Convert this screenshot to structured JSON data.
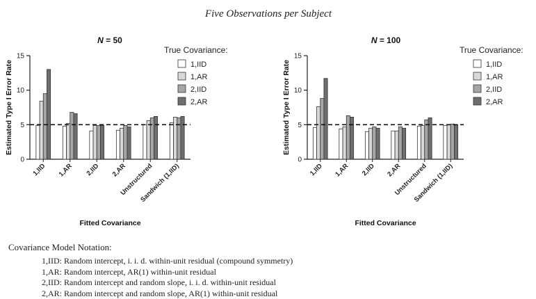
{
  "figure": {
    "suptitle": "Five Observations per Subject",
    "notes_heading": "Covariance Model Notation:",
    "notes": [
      "1,IID: Random intercept, i. i. d. within-unit residual (compound symmetry)",
      "1,AR: Random intercept, AR(1) within-unit residual",
      "2,IID: Random intercept and random slope, i. i. d. within-unit residual",
      "2,AR: Random intercept and random slope, AR(1) within-unit residual"
    ]
  },
  "chart_data": [
    {
      "type": "bar",
      "title": "N = 50",
      "title_parts": [
        "N",
        " = 50"
      ],
      "xlabel": "Fitted Covariance",
      "ylabel": "Estimated Type I Error Rate",
      "ylim": [
        0,
        15
      ],
      "yticks": [
        0,
        5,
        10,
        15
      ],
      "reference_line": 5,
      "grid": false,
      "legend": {
        "title": "True Covariance:",
        "placement": "right"
      },
      "categories": [
        "1,IID",
        "1,AR",
        "2,IID",
        "2,AR",
        "Unstructured",
        "Sandwich (1,IID)"
      ],
      "series": [
        {
          "name": "1,IID",
          "color": "#ffffff",
          "values": [
            4.9,
            4.8,
            4.1,
            4.2,
            5.0,
            5.3
          ]
        },
        {
          "name": "1,AR",
          "color": "#d9d9d9",
          "values": [
            8.4,
            5.2,
            4.9,
            4.5,
            5.6,
            6.1
          ]
        },
        {
          "name": "2,IID",
          "color": "#a6a6a6",
          "values": [
            9.5,
            6.8,
            4.9,
            4.9,
            6.0,
            6.0
          ]
        },
        {
          "name": "2,AR",
          "color": "#6e6e6e",
          "values": [
            13.0,
            6.6,
            4.9,
            4.7,
            6.2,
            6.2
          ]
        }
      ]
    },
    {
      "type": "bar",
      "title": "N = 100",
      "title_parts": [
        "N",
        " = 100"
      ],
      "xlabel": "Fitted Covariance",
      "ylabel": "Estimated Type I Error Rate",
      "ylim": [
        0,
        15
      ],
      "yticks": [
        0,
        5,
        10,
        15
      ],
      "reference_line": 5,
      "grid": false,
      "legend": {
        "title": "True Covariance:",
        "placement": "right"
      },
      "categories": [
        "1,IID",
        "1,AR",
        "2,IID",
        "2,AR",
        "Unstructured",
        "Sandwich (1,IID)"
      ],
      "series": [
        {
          "name": "1,IID",
          "color": "#ffffff",
          "values": [
            4.6,
            4.4,
            4.0,
            4.1,
            4.8,
            4.9
          ]
        },
        {
          "name": "1,AR",
          "color": "#d9d9d9",
          "values": [
            7.6,
            4.7,
            4.5,
            4.1,
            4.9,
            5.0
          ]
        },
        {
          "name": "2,IID",
          "color": "#a6a6a6",
          "values": [
            8.8,
            6.3,
            4.7,
            4.7,
            5.7,
            5.1
          ]
        },
        {
          "name": "2,AR",
          "color": "#6e6e6e",
          "values": [
            11.7,
            6.1,
            4.5,
            4.5,
            6.0,
            5.0
          ]
        }
      ]
    }
  ]
}
